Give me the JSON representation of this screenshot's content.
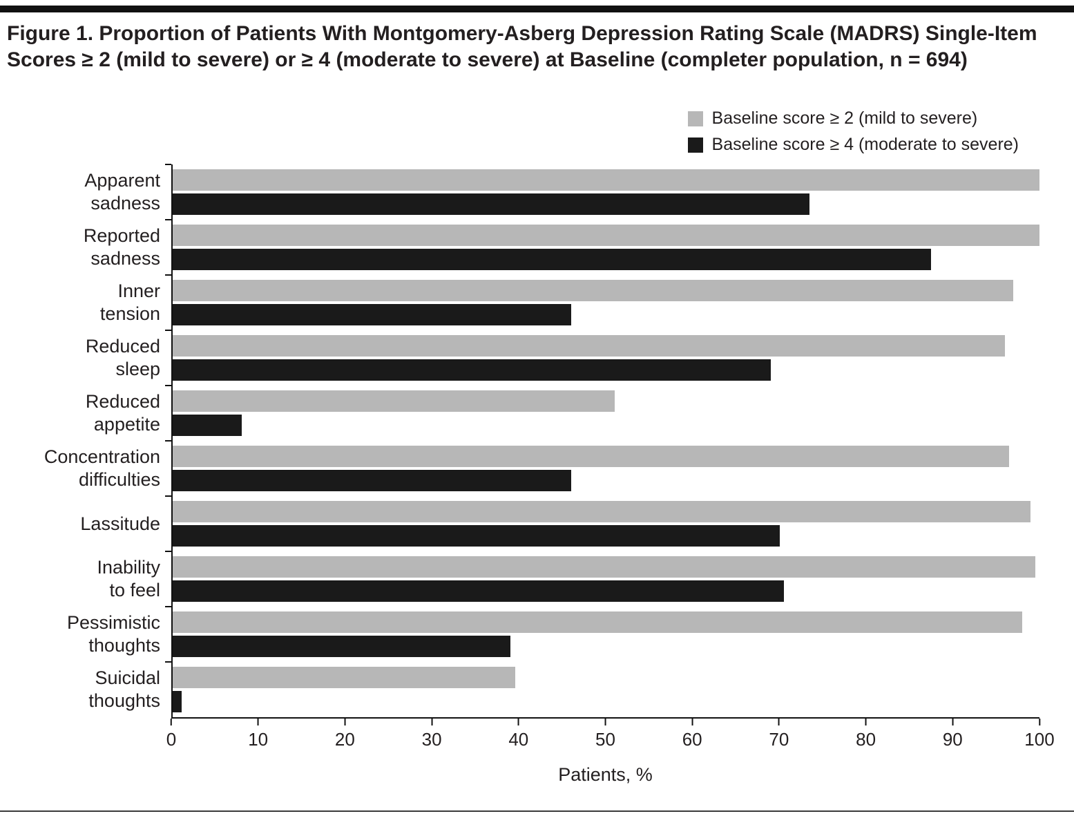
{
  "figure": {
    "title": "Figure 1. Proportion of Patients With Montgomery-Asberg Depression Rating Scale (MADRS) Single-Item Scores ≥ 2 (mild to severe) or ≥ 4 (moderate to severe) at Baseline (completer population, n = 694)"
  },
  "chart_data": {
    "type": "bar",
    "orientation": "horizontal",
    "title": "Figure 1. Proportion of Patients With Montgomery-Asberg Depression Rating Scale (MADRS) Single-Item Scores ≥ 2 (mild to severe) or ≥ 4 (moderate to severe) at Baseline (completer population, n = 694)",
    "categories": [
      "Apparent sadness",
      "Reported sadness",
      "Inner tension",
      "Reduced sleep",
      "Reduced appetite",
      "Concentration difficulties",
      "Lassitude",
      "Inability to feel",
      "Pessimistic thoughts",
      "Suicidal thoughts"
    ],
    "category_labels": [
      "Apparent\nsadness",
      "Reported\nsadness",
      "Inner\ntension",
      "Reduced\nsleep",
      "Reduced\nappetite",
      "Concentration\ndifficulties",
      "Lassitude",
      "Inability\nto feel",
      "Pessimistic\nthoughts",
      "Suicidal\nthoughts"
    ],
    "series": [
      {
        "name": "Baseline score ≥ 2 (mild to severe)",
        "color": "#b7b7b7",
        "values": [
          100,
          100,
          97,
          96,
          51,
          96.5,
          99,
          99.5,
          98,
          39.5
        ]
      },
      {
        "name": "Baseline score ≥ 4 (moderate to severe)",
        "color": "#1a1a1a",
        "values": [
          73.5,
          87.5,
          46,
          69,
          8,
          46,
          70,
          70.5,
          39,
          1
        ]
      }
    ],
    "xlabel": "Patients, %",
    "xlim": [
      0,
      100
    ],
    "xticks": [
      0,
      10,
      20,
      30,
      40,
      50,
      60,
      70,
      80,
      90,
      100
    ],
    "legend_position": "top-right",
    "grid": false
  }
}
